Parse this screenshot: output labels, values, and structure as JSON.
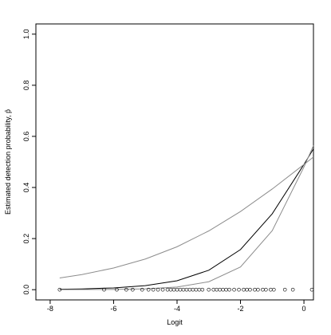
{
  "chart_data": {
    "type": "line",
    "x_label": "Logit",
    "y_label": "Estimated detection probability, p̂",
    "x": [
      -7.7,
      -7,
      -6,
      -5,
      -4,
      -3,
      -2,
      -1,
      0,
      0.3
    ],
    "series": [
      {
        "color": "#000000",
        "values": [
          0.0017,
          0.0031,
          0.007,
          0.0157,
          0.035,
          0.076,
          0.157,
          0.297,
          0.49,
          0.551
        ]
      },
      {
        "color": "#8c8c8c",
        "values": [
          0.0002,
          0.0004,
          0.0011,
          0.0034,
          0.0103,
          0.031,
          0.089,
          0.231,
          0.48,
          0.564
        ]
      },
      {
        "color": "#8c8c8c",
        "values": [
          0.046,
          0.059,
          0.085,
          0.12,
          0.168,
          0.23,
          0.306,
          0.394,
          0.49,
          0.519
        ]
      }
    ],
    "points": {
      "color": "#000000",
      "x": [
        -7.7,
        -6.3,
        -5.9,
        -5.6,
        -5.4,
        -5.1,
        -4.9,
        -4.75,
        -4.6,
        -4.45,
        -4.3,
        -4.2,
        -4.1,
        -4.0,
        -3.9,
        -3.8,
        -3.7,
        -3.6,
        -3.5,
        -3.4,
        -3.3,
        -3.2,
        -3.0,
        -2.85,
        -2.75,
        -2.65,
        -2.55,
        -2.45,
        -2.35,
        -2.2,
        -2.05,
        -1.9,
        -1.8,
        -1.7,
        -1.55,
        -1.45,
        -1.3,
        -1.2,
        -1.05,
        -0.95,
        -0.6,
        -0.35,
        0.25
      ],
      "y": [
        0,
        0,
        0,
        0,
        0,
        0,
        0,
        0,
        0,
        0,
        0,
        0,
        0,
        0,
        0,
        0,
        0,
        0,
        0,
        0,
        0,
        0,
        0,
        0,
        0,
        0,
        0,
        0,
        0,
        0,
        0,
        0,
        0,
        0,
        0,
        0,
        0,
        0,
        0,
        0,
        0,
        0,
        0
      ]
    },
    "xlim": [
      -8.45,
      0.3
    ],
    "ylim": [
      -0.04,
      1.04
    ],
    "xticks": [
      -8,
      -6,
      -4,
      -2,
      0
    ],
    "yticks": [
      {
        "value": 0,
        "label": "0.0"
      },
      {
        "value": 0.2,
        "label": "0.2"
      },
      {
        "value": 0.4,
        "label": "0.4"
      },
      {
        "value": 0.6,
        "label": "0.6"
      },
      {
        "value": 0.8,
        "label": "0.8"
      },
      {
        "value": 1,
        "label": "1.0"
      }
    ],
    "grid": false
  }
}
